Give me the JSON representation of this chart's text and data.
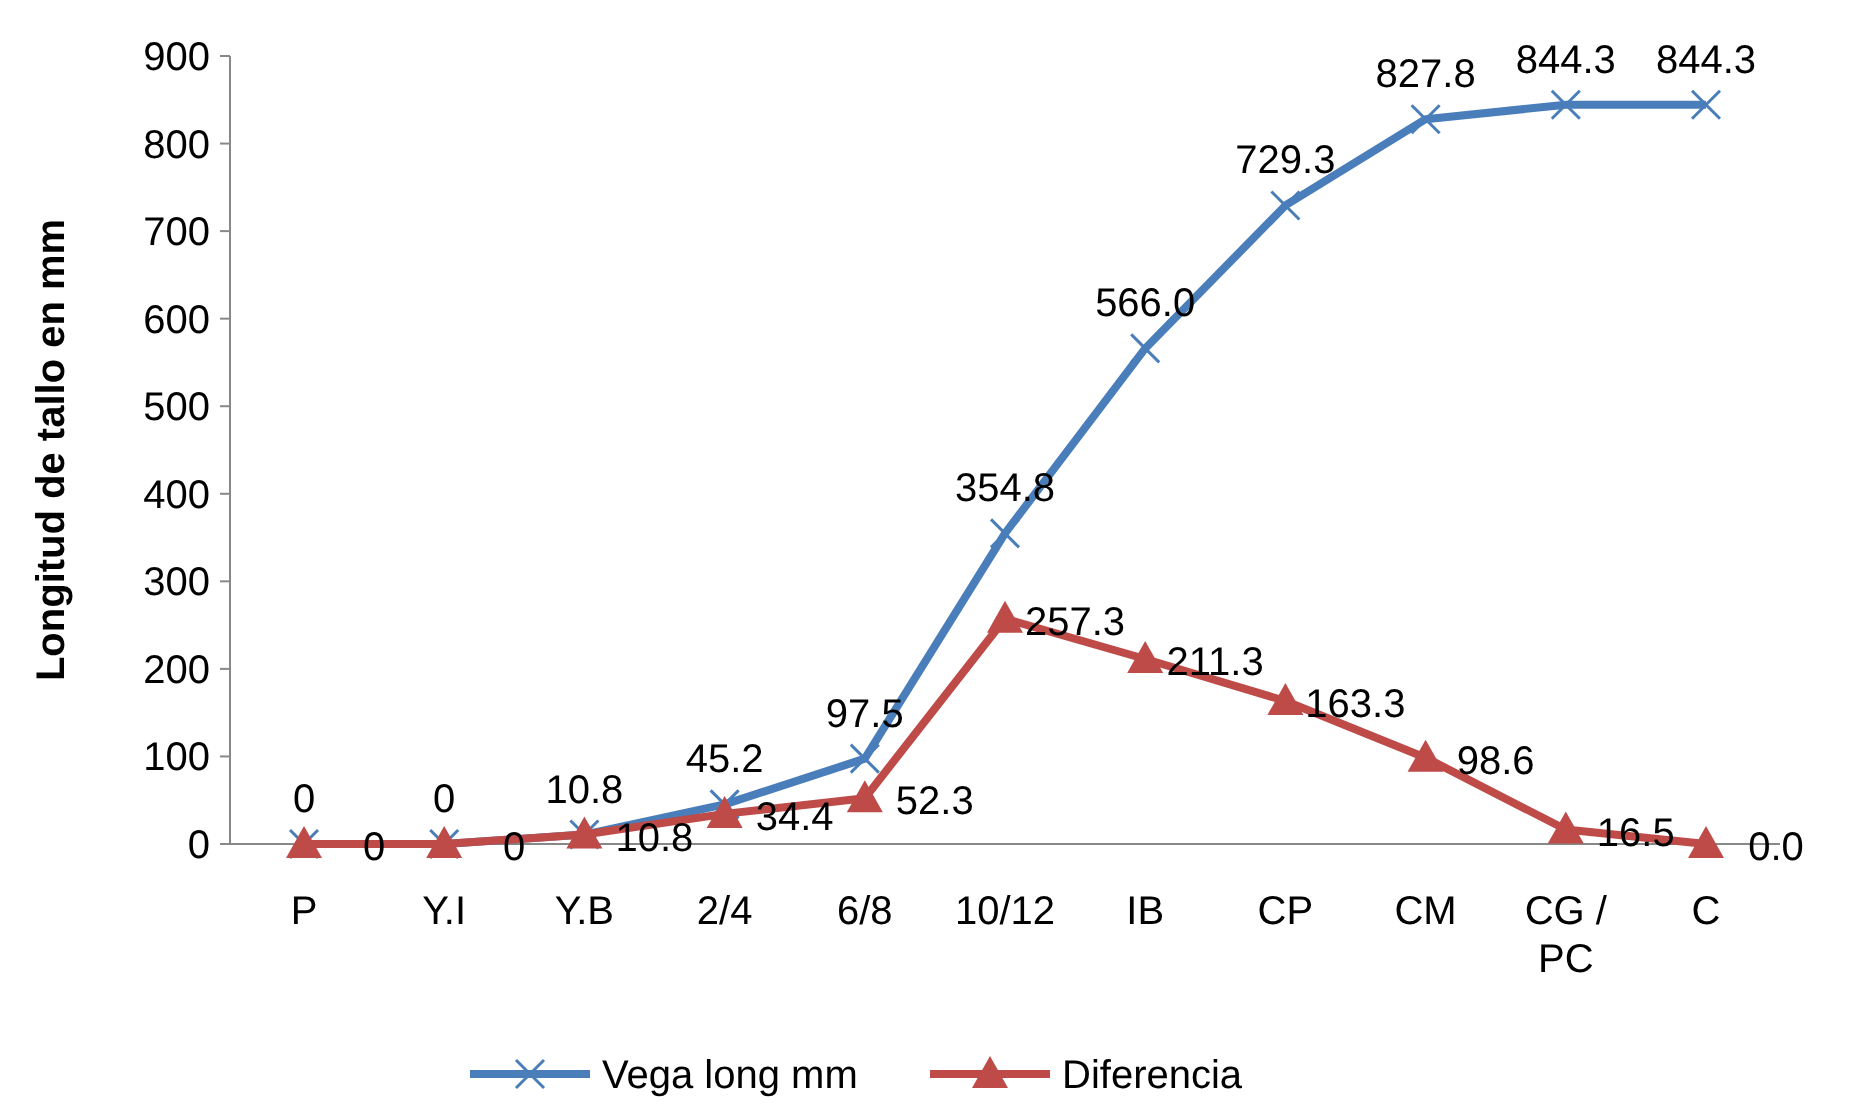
{
  "chart_data": {
    "type": "line",
    "ylabel": "Longitud de tallo en mm",
    "categories": [
      "P",
      "Y.I",
      "Y.B",
      "2/4",
      "6/8",
      "10/12",
      "IB",
      "CP",
      "CM",
      "CG / PC",
      "C"
    ],
    "series": [
      {
        "name": "Vega long mm",
        "color": "#4a7ebb",
        "marker": "cross",
        "values": [
          0,
          0,
          10.8,
          45.2,
          97.5,
          354.8,
          566.0,
          729.3,
          827.8,
          844.3,
          844.3
        ],
        "value_labels": [
          "0",
          "0",
          "10.8",
          "45.2",
          "97.5",
          "354.8",
          "566.0",
          "729.3",
          "827.8",
          "844.3",
          "844.3"
        ]
      },
      {
        "name": "Diferencia",
        "color": "#be4b48",
        "marker": "triangle",
        "values": [
          0,
          0,
          10.8,
          34.4,
          52.3,
          257.3,
          211.3,
          163.3,
          98.6,
          16.5,
          0.0
        ],
        "value_labels": [
          "0",
          "0",
          "10.8",
          "34.4",
          "52.3",
          "257.3",
          "211.3",
          "163.3",
          "98.6",
          "16.5",
          "0.0"
        ]
      }
    ],
    "ylim": [
      0,
      900
    ],
    "yticks": [
      0,
      100,
      200,
      300,
      400,
      500,
      600,
      700,
      800,
      900
    ],
    "grid": false,
    "legend": "bottom",
    "line_style": "solid"
  }
}
